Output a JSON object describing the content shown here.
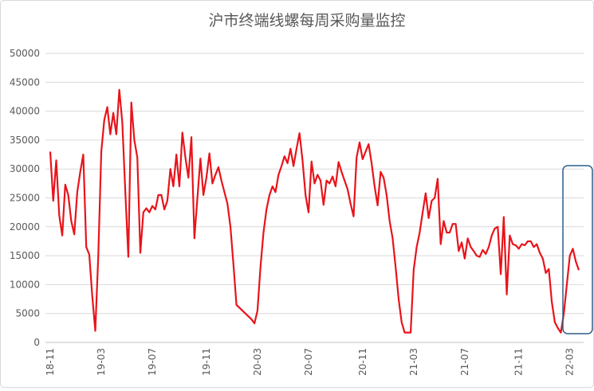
{
  "chart_data": {
    "type": "line",
    "title": "沪市终端线螺每周采购量监控",
    "categories": [
      "18-11",
      null,
      null,
      null,
      null,
      null,
      null,
      null,
      null,
      null,
      null,
      null,
      null,
      null,
      null,
      null,
      null,
      "19-03",
      null,
      null,
      null,
      null,
      null,
      null,
      null,
      null,
      null,
      null,
      null,
      null,
      null,
      null,
      null,
      null,
      "19-07",
      null,
      null,
      null,
      null,
      null,
      null,
      null,
      null,
      null,
      null,
      null,
      null,
      null,
      null,
      null,
      null,
      null,
      "19-11",
      null,
      null,
      null,
      null,
      null,
      null,
      null,
      null,
      null,
      null,
      null,
      null,
      null,
      null,
      null,
      null,
      "20-03",
      null,
      null,
      null,
      null,
      null,
      null,
      null,
      null,
      null,
      null,
      null,
      null,
      null,
      null,
      null,
      null,
      "20-07",
      null,
      null,
      null,
      null,
      null,
      null,
      null,
      null,
      null,
      null,
      null,
      null,
      null,
      null,
      null,
      null,
      null,
      "20-11",
      null,
      null,
      null,
      null,
      null,
      null,
      null,
      null,
      null,
      null,
      null,
      null,
      null,
      null,
      null,
      null,
      "21-03",
      null,
      null,
      null,
      null,
      null,
      null,
      null,
      null,
      null,
      null,
      null,
      null,
      null,
      null,
      null,
      null,
      "21-07",
      null,
      null,
      null,
      null,
      null,
      null,
      null,
      null,
      null,
      null,
      null,
      null,
      null,
      null,
      null,
      null,
      null,
      "21-11",
      null,
      null,
      null,
      null,
      null,
      null,
      null,
      null,
      null,
      null,
      null,
      null,
      null,
      null,
      null,
      null,
      "22-03",
      null,
      null,
      null
    ],
    "values": [
      33000,
      24500,
      31500,
      22000,
      18500,
      27300,
      25500,
      21000,
      18700,
      26000,
      29500,
      32500,
      16500,
      15200,
      8000,
      2000,
      15000,
      33000,
      38500,
      40700,
      36000,
      39700,
      36000,
      43700,
      38000,
      26000,
      14800,
      41500,
      35000,
      32000,
      15500,
      22500,
      23200,
      22500,
      23600,
      23000,
      25500,
      25500,
      23000,
      24500,
      30000,
      27000,
      32500,
      27000,
      36300,
      32000,
      28500,
      35500,
      18000,
      25000,
      31800,
      25500,
      28500,
      32700,
      27500,
      29000,
      30300,
      28000,
      26000,
      24000,
      20000,
      13500,
      6500,
      6000,
      5500,
      5000,
      4500,
      4000,
      3300,
      5500,
      13000,
      19000,
      23000,
      25500,
      27000,
      26000,
      29000,
      30500,
      32200,
      31000,
      33500,
      30500,
      33500,
      36200,
      31500,
      25500,
      22500,
      31300,
      27500,
      29000,
      28000,
      23800,
      28000,
      27500,
      28700,
      27000,
      31200,
      29500,
      28000,
      26500,
      24000,
      21800,
      32000,
      34600,
      31700,
      33000,
      34300,
      31000,
      27000,
      23700,
      29500,
      28500,
      25500,
      21000,
      18000,
      13000,
      7500,
      3500,
      1700,
      1700,
      1700,
      12500,
      16500,
      19000,
      22500,
      25800,
      21500,
      24500,
      25000,
      28300,
      17000,
      21000,
      19000,
      19000,
      20500,
      20500,
      15800,
      17300,
      14500,
      18000,
      16500,
      15800,
      15000,
      14800,
      16000,
      15300,
      16500,
      18500,
      19700,
      20000,
      11800,
      21700,
      8300,
      18500,
      17000,
      16800,
      16200,
      17000,
      16800,
      17500,
      17500,
      16500,
      17000,
      15500,
      14500,
      12000,
      12700,
      7000,
      3500,
      2500,
      1700,
      5000,
      10000,
      15000,
      16200,
      14000,
      12500
    ],
    "color": "#e8141a",
    "ylim": [
      0,
      50000
    ],
    "yticks": [
      0,
      5000,
      10000,
      15000,
      20000,
      25000,
      30000,
      35000,
      40000,
      45000,
      50000
    ],
    "grid": true
  }
}
